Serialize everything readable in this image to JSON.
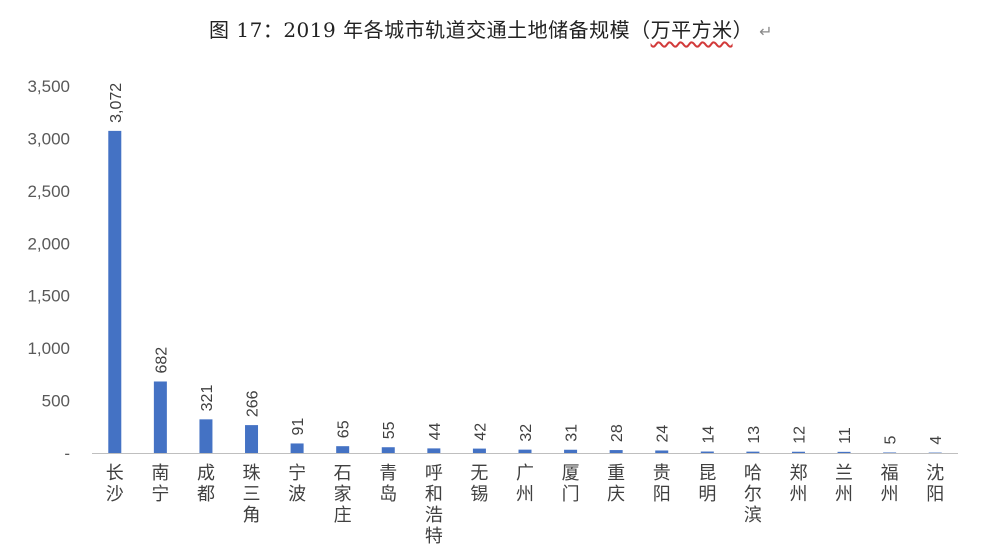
{
  "title": {
    "prefix": "图 17：2019 年各城市轨道交通土地储备规模（",
    "unit_wavy": "万平方米",
    "suffix": "）",
    "return_mark": "↵"
  },
  "chart_data": {
    "type": "bar",
    "title": "图 17：2019 年各城市轨道交通土地储备规模（万平方米）",
    "categories": [
      "长沙",
      "南宁",
      "成都",
      "珠三角",
      "宁波",
      "石家庄",
      "青岛",
      "呼和浩特",
      "无锡",
      "广州",
      "厦门",
      "重庆",
      "贵阳",
      "昆明",
      "哈尔滨",
      "郑州",
      "兰州",
      "福州",
      "沈阳"
    ],
    "values": [
      3072,
      682,
      321,
      266,
      91,
      65,
      55,
      44,
      42,
      32,
      31,
      28,
      24,
      14,
      13,
      12,
      11,
      5,
      4
    ],
    "value_labels": [
      "3,072",
      "682",
      "321",
      "266",
      "91",
      "65",
      "55",
      "44",
      "42",
      "32",
      "31",
      "28",
      "24",
      "14",
      "13",
      "12",
      "11",
      "5",
      "4"
    ],
    "ylim": [
      0,
      3500
    ],
    "y_ticks": [
      0,
      500,
      1000,
      1500,
      2000,
      2500,
      3000,
      3500
    ],
    "y_tick_labels": [
      "-",
      "500",
      "1,000",
      "1,500",
      "2,000",
      "2,500",
      "3,000",
      "3,500"
    ],
    "xlabel": "",
    "ylabel": "",
    "grid": false,
    "legend": "none",
    "bar_color": "#4472c4",
    "axis_color": "#bfbfbf"
  }
}
